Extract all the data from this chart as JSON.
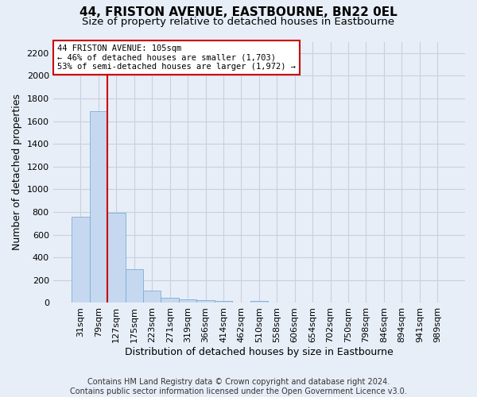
{
  "title": "44, FRISTON AVENUE, EASTBOURNE, BN22 0EL",
  "subtitle": "Size of property relative to detached houses in Eastbourne",
  "xlabel": "Distribution of detached houses by size in Eastbourne",
  "ylabel": "Number of detached properties",
  "footnote": "Contains HM Land Registry data © Crown copyright and database right 2024.\nContains public sector information licensed under the Open Government Licence v3.0.",
  "bar_labels": [
    "31sqm",
    "79sqm",
    "127sqm",
    "175sqm",
    "223sqm",
    "271sqm",
    "319sqm",
    "366sqm",
    "414sqm",
    "462sqm",
    "510sqm",
    "558sqm",
    "606sqm",
    "654sqm",
    "702sqm",
    "750sqm",
    "798sqm",
    "846sqm",
    "894sqm",
    "941sqm",
    "989sqm"
  ],
  "bar_values": [
    760,
    1690,
    790,
    300,
    110,
    45,
    30,
    22,
    20,
    0,
    20,
    0,
    0,
    0,
    0,
    0,
    0,
    0,
    0,
    0,
    0
  ],
  "bar_color": "#c5d8f0",
  "bar_edge_color": "#7aaed6",
  "vline_x": 1.5,
  "vline_color": "#cc0000",
  "ylim": [
    0,
    2300
  ],
  "yticks": [
    0,
    200,
    400,
    600,
    800,
    1000,
    1200,
    1400,
    1600,
    1800,
    2000,
    2200
  ],
  "annotation_text": "44 FRISTON AVENUE: 105sqm\n← 46% of detached houses are smaller (1,703)\n53% of semi-detached houses are larger (1,972) →",
  "annotation_box_facecolor": "#ffffff",
  "annotation_box_edge": "#cc0000",
  "bg_color": "#e8eef8",
  "plot_bg_color": "#e8eef8",
  "grid_color": "#c8d0dc",
  "title_fontsize": 11,
  "subtitle_fontsize": 9.5,
  "label_fontsize": 9,
  "tick_fontsize": 8,
  "footnote_fontsize": 7
}
